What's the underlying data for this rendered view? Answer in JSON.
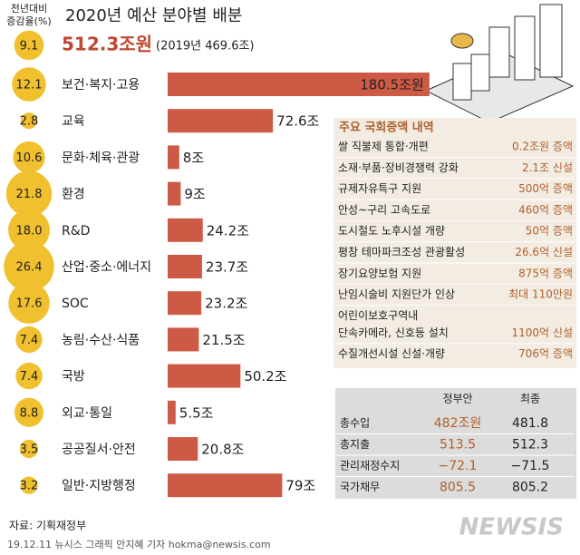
{
  "chart_data": {
    "type": "bar",
    "title": "2020년 예산 분야별 배분",
    "growth_header": [
      "전년대비",
      "증감율(%)"
    ],
    "total_growth": 9.1,
    "total_label": "512.3조원",
    "total_note": "(2019년 469.6조)",
    "categories": [
      "보건·복지·고용",
      "교육",
      "문화·체육·관광",
      "환경",
      "R&D",
      "산업·중소·에너지",
      "SOC",
      "농림·수산·식품",
      "국방",
      "외교·통일",
      "공공질서·안전",
      "일반·지방행정"
    ],
    "series": [
      {
        "name": "전년대비 증감율(%)",
        "color": "#f0c02e",
        "values": [
          12.1,
          2.8,
          10.6,
          21.8,
          18.0,
          26.4,
          17.6,
          7.4,
          7.4,
          8.8,
          3.5,
          3.2
        ],
        "value_labels": [
          "12.1",
          "2.8",
          "10.6",
          "21.8",
          "18.0",
          "26.4",
          "17.6",
          "7.4",
          "7.4",
          "8.8",
          "3.5",
          "3.2"
        ]
      },
      {
        "name": "예산",
        "color": "#cd5a44",
        "values": [
          180.5,
          72.6,
          8,
          9,
          24.2,
          23.7,
          23.2,
          21.5,
          50.2,
          5.5,
          20.8,
          79
        ],
        "value_labels": [
          "180.5조원",
          "72.6조",
          "8조",
          "9조",
          "24.2조",
          "23.7조",
          "23.2조",
          "21.5조",
          "50.2조",
          "5.5조",
          "20.8조",
          "79조"
        ]
      }
    ]
  },
  "increase_table": {
    "title": "주요 국회증액 내역",
    "rows": [
      {
        "label": [
          "쌀 직불제 통합·개편"
        ],
        "amount": "0.2조원 증액"
      },
      {
        "label": [
          "소재·부품·장비경쟁력 강화"
        ],
        "amount": "2.1조 신설"
      },
      {
        "label": [
          "규제자유특구 지원"
        ],
        "amount": "500억 증액"
      },
      {
        "label": [
          "안성~구리 고속도로"
        ],
        "amount": "460억 증액"
      },
      {
        "label": [
          "도시철도 노후시설 개량"
        ],
        "amount": "50억 증액"
      },
      {
        "label": [
          "평창 테마파크조성 관광활성"
        ],
        "amount": "26.6억 신설"
      },
      {
        "label": [
          "장기요양보험 지원"
        ],
        "amount": "875억 증액"
      },
      {
        "label": [
          "난임시술비 지원단가 인상"
        ],
        "amount": "최대 110만원"
      },
      {
        "label": [
          "어린이보호구역내",
          "단속카메라, 신호등 설치"
        ],
        "amount": "1100억 신설"
      },
      {
        "label": [
          "수질개선시설 신설·개량"
        ],
        "amount": "706억 증액"
      }
    ]
  },
  "summary_table": {
    "header": [
      "정부안",
      "최종"
    ],
    "rows": [
      [
        "총수입",
        "482조원",
        "481.8"
      ],
      [
        "총지출",
        "513.5",
        "512.3"
      ],
      [
        "관리재정수지",
        "−72.1",
        "−71.5"
      ],
      [
        "국가채무",
        "805.5",
        "805.2"
      ]
    ]
  },
  "footer": {
    "source": "자료: 기획재정부",
    "credit": "19.12.11 뉴시스 그래픽 안지혜 기자 hokma@newsis.com",
    "logo": "NEWSIS"
  }
}
